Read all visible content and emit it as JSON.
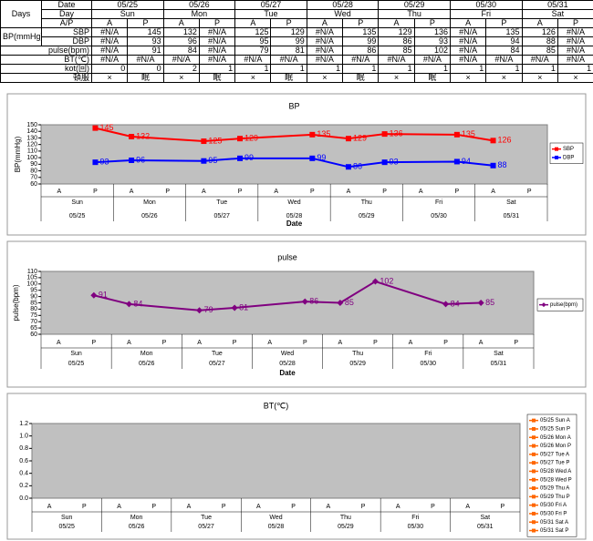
{
  "table": {
    "corner": "Days",
    "date_label": "Date",
    "dates": [
      "05/25",
      "05/26",
      "05/27",
      "05/28",
      "05/29",
      "05/30",
      "05/31"
    ],
    "day_label": "Day",
    "days": [
      "Sun",
      "Mon",
      "Tue",
      "Wed",
      "Thu",
      "Fri",
      "Sat"
    ],
    "ap_label": "A/P",
    "ap": [
      "A",
      "P",
      "A",
      "P",
      "A",
      "P",
      "A",
      "P",
      "A",
      "P",
      "A",
      "P",
      "A",
      "P"
    ],
    "bp_label": "BP(mmHg)",
    "rows": [
      {
        "label": "SBP",
        "cells": [
          "#N/A",
          145,
          132,
          "#N/A",
          125,
          129,
          "#N/A",
          135,
          129,
          136,
          "#N/A",
          135,
          126,
          "#N/A"
        ]
      },
      {
        "label": "DBP",
        "cells": [
          "#N/A",
          93,
          96,
          "#N/A",
          95,
          99,
          "#N/A",
          99,
          86,
          93,
          "#N/A",
          94,
          88,
          "#N/A"
        ]
      },
      {
        "label": "pulse(bpm)",
        "cells": [
          "#N/A",
          91,
          84,
          "#N/A",
          79,
          81,
          "#N/A",
          86,
          85,
          102,
          "#N/A",
          84,
          85,
          "#N/A"
        ]
      },
      {
        "label": "BT(℃)",
        "cells": [
          "#N/A",
          "#N/A",
          "#N/A",
          "#N/A",
          "#N/A",
          "#N/A",
          "#N/A",
          "#N/A",
          "#N/A",
          "#N/A",
          "#N/A",
          "#N/A",
          "#N/A",
          "#N/A"
        ]
      },
      {
        "label": "kot(回)",
        "cells": [
          0,
          0,
          2,
          1,
          1,
          1,
          1,
          1,
          1,
          1,
          1,
          1,
          1,
          1
        ]
      },
      {
        "label": "頓服",
        "cells": [
          "×",
          "眠",
          "×",
          "眠",
          "×",
          "眠",
          "×",
          "眠",
          "×",
          "眠",
          "×",
          "×",
          "×",
          "×"
        ]
      }
    ]
  },
  "chart_data": [
    {
      "type": "line",
      "title": "BP",
      "ylabel": "BP(mmHg)",
      "xlabel": "Date",
      "background": "#c0c0c0",
      "legend": "right",
      "categories": [
        "A",
        "P",
        "A",
        "P",
        "A",
        "P",
        "A",
        "P",
        "A",
        "P",
        "A",
        "P",
        "A",
        "P"
      ],
      "days": [
        "Sun",
        "Mon",
        "Tue",
        "Wed",
        "Thu",
        "Fri",
        "Sat"
      ],
      "dates": [
        "05/25",
        "05/26",
        "05/27",
        "05/28",
        "05/29",
        "05/30",
        "05/31"
      ],
      "ylim": [
        60,
        150
      ],
      "yticks": [
        60,
        70,
        80,
        90,
        100,
        110,
        120,
        130,
        140,
        150
      ],
      "series": [
        {
          "name": "SBP",
          "color": "#ff0000",
          "marker": "square",
          "values": [
            null,
            145,
            132,
            null,
            125,
            129,
            null,
            135,
            129,
            136,
            null,
            135,
            126,
            null
          ]
        },
        {
          "name": "DBP",
          "color": "#0000ff",
          "marker": "square",
          "values": [
            null,
            93,
            96,
            null,
            95,
            99,
            null,
            99,
            86,
            93,
            null,
            94,
            88,
            null
          ]
        }
      ]
    },
    {
      "type": "line",
      "title": "pulse",
      "ylabel": "pulse(bpm)",
      "xlabel": "Date",
      "background": "#c0c0c0",
      "legend": "right",
      "categories": [
        "A",
        "P",
        "A",
        "P",
        "A",
        "P",
        "A",
        "P",
        "A",
        "P",
        "A",
        "P",
        "A",
        "P"
      ],
      "days": [
        "Sun",
        "Mon",
        "Tue",
        "Wed",
        "Thu",
        "Fri",
        "Sat"
      ],
      "dates": [
        "05/25",
        "05/26",
        "05/27",
        "05/28",
        "05/29",
        "05/30",
        "05/31"
      ],
      "ylim": [
        60,
        110
      ],
      "yticks": [
        60,
        65,
        70,
        75,
        80,
        85,
        90,
        95,
        100,
        105,
        110
      ],
      "series": [
        {
          "name": "pulse(bpm)",
          "color": "#800080",
          "marker": "diamond",
          "values": [
            null,
            91,
            84,
            null,
            79,
            81,
            null,
            86,
            85,
            102,
            null,
            84,
            85,
            null
          ]
        }
      ]
    },
    {
      "type": "line",
      "title": "BT(℃)",
      "background": "#c0c0c0",
      "legend": "right",
      "categories": [
        "A",
        "P",
        "A",
        "P",
        "A",
        "P",
        "A",
        "P",
        "A",
        "P",
        "A",
        "P",
        "A",
        "P"
      ],
      "days": [
        "Sun",
        "Mon",
        "Tue",
        "Wed",
        "Thu",
        "Fri",
        "Sat"
      ],
      "dates": [
        "05/25",
        "05/26",
        "05/27",
        "05/28",
        "05/29",
        "05/30",
        "05/31"
      ],
      "ylim": [
        0,
        1.2
      ],
      "yticks": [
        {
          "value": 0,
          "label": "0.0"
        },
        0.2,
        0.4,
        0.6,
        0.8,
        {
          "value": 1,
          "label": "1.0"
        },
        1.2
      ],
      "series": [
        {
          "name": "05/25 Sun A",
          "color": "#ff6600",
          "marker": "square",
          "values": [
            null,
            null,
            null,
            null,
            null,
            null,
            null,
            null,
            null,
            null,
            null,
            null,
            null,
            null
          ]
        },
        {
          "name": "05/25 Sun P",
          "color": "#ff6600",
          "marker": "square",
          "values": [
            null,
            null,
            null,
            null,
            null,
            null,
            null,
            null,
            null,
            null,
            null,
            null,
            null,
            null
          ]
        },
        {
          "name": "05/26 Mon A",
          "color": "#ff6600",
          "marker": "square",
          "values": [
            null,
            null,
            null,
            null,
            null,
            null,
            null,
            null,
            null,
            null,
            null,
            null,
            null,
            null
          ]
        },
        {
          "name": "05/26 Mon P",
          "color": "#ff6600",
          "marker": "square",
          "values": [
            null,
            null,
            null,
            null,
            null,
            null,
            null,
            null,
            null,
            null,
            null,
            null,
            null,
            null
          ]
        },
        {
          "name": "05/27 Tue A",
          "color": "#ff6600",
          "marker": "square",
          "values": [
            null,
            null,
            null,
            null,
            null,
            null,
            null,
            null,
            null,
            null,
            null,
            null,
            null,
            null
          ]
        },
        {
          "name": "05/27 Tue P",
          "color": "#ff6600",
          "marker": "square",
          "values": [
            null,
            null,
            null,
            null,
            null,
            null,
            null,
            null,
            null,
            null,
            null,
            null,
            null,
            null
          ]
        },
        {
          "name": "05/28 Wed A",
          "color": "#ff6600",
          "marker": "square",
          "values": [
            null,
            null,
            null,
            null,
            null,
            null,
            null,
            null,
            null,
            null,
            null,
            null,
            null,
            null
          ]
        },
        {
          "name": "05/28 Wed P",
          "color": "#ff6600",
          "marker": "square",
          "values": [
            null,
            null,
            null,
            null,
            null,
            null,
            null,
            null,
            null,
            null,
            null,
            null,
            null,
            null
          ]
        },
        {
          "name": "05/29 Thu A",
          "color": "#ff6600",
          "marker": "square",
          "values": [
            null,
            null,
            null,
            null,
            null,
            null,
            null,
            null,
            null,
            null,
            null,
            null,
            null,
            null
          ]
        },
        {
          "name": "05/29 Thu P",
          "color": "#ff6600",
          "marker": "square",
          "values": [
            null,
            null,
            null,
            null,
            null,
            null,
            null,
            null,
            null,
            null,
            null,
            null,
            null,
            null
          ]
        },
        {
          "name": "05/30 Fri A",
          "color": "#ff6600",
          "marker": "square",
          "values": [
            null,
            null,
            null,
            null,
            null,
            null,
            null,
            null,
            null,
            null,
            null,
            null,
            null,
            null
          ]
        },
        {
          "name": "05/30 Fri P",
          "color": "#ff6600",
          "marker": "square",
          "values": [
            null,
            null,
            null,
            null,
            null,
            null,
            null,
            null,
            null,
            null,
            null,
            null,
            null,
            null
          ]
        },
        {
          "name": "05/31 Sat A",
          "color": "#ff6600",
          "marker": "square",
          "values": [
            null,
            null,
            null,
            null,
            null,
            null,
            null,
            null,
            null,
            null,
            null,
            null,
            null,
            null
          ]
        },
        {
          "name": "05/31 Sat P",
          "color": "#ff6600",
          "marker": "square",
          "values": [
            null,
            null,
            null,
            null,
            null,
            null,
            null,
            null,
            null,
            null,
            null,
            null,
            null,
            null
          ]
        }
      ]
    }
  ]
}
